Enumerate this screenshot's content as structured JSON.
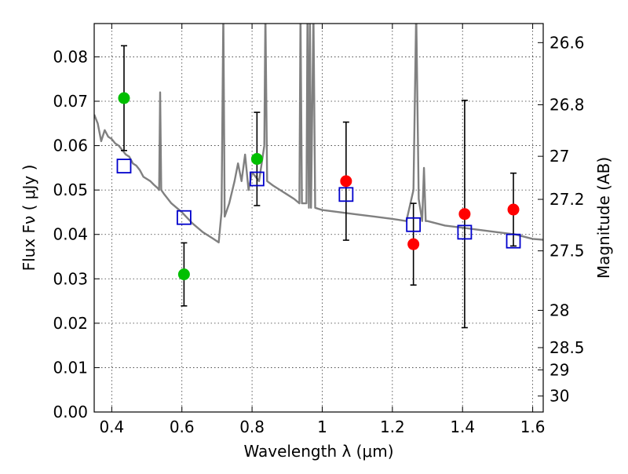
{
  "chart_data": {
    "type": "scatter",
    "xlabel": "Wavelength  λ (μm)",
    "ylabel": "Flux  Fν  ( μJy )",
    "y2label": "Magnitude (AB)",
    "xlim": [
      0.35,
      1.63
    ],
    "ylim": [
      0.0,
      0.0875
    ],
    "grid": true,
    "x_ticks": [
      0.4,
      0.6,
      0.8,
      1.0,
      1.2,
      1.4,
      1.6
    ],
    "x_tick_labels": [
      "0.4",
      "0.6",
      "0.8",
      "1",
      "1.2",
      "1.4",
      "1.6"
    ],
    "y_ticks": [
      0.0,
      0.01,
      0.02,
      0.03,
      0.04,
      0.05,
      0.06,
      0.07,
      0.08
    ],
    "y_tick_labels": [
      "0.00",
      "0.01",
      "0.02",
      "0.03",
      "0.04",
      "0.05",
      "0.06",
      "0.07",
      "0.08"
    ],
    "y2_ticks": [
      {
        "label": "26.6",
        "flux": 0.0832
      },
      {
        "label": "26.8",
        "flux": 0.0692
      },
      {
        "label": "27",
        "flux": 0.0576
      },
      {
        "label": "27.2",
        "flux": 0.0479
      },
      {
        "label": "27.5",
        "flux": 0.0363
      },
      {
        "label": "28",
        "flux": 0.0229
      },
      {
        "label": "28.5",
        "flux": 0.0145
      },
      {
        "label": "29",
        "flux": 0.0095
      },
      {
        "label": "30",
        "flux": 0.0036
      }
    ],
    "series": [
      {
        "marker": "circle",
        "color": "#00bf00",
        "points": [
          {
            "x": 0.435,
            "y": 0.0707,
            "err": 0.0118
          },
          {
            "x": 0.606,
            "y": 0.031,
            "err": 0.0071
          },
          {
            "x": 0.814,
            "y": 0.057,
            "err": 0.0105
          }
        ]
      },
      {
        "marker": "circle",
        "color": "#ff0000",
        "points": [
          {
            "x": 1.068,
            "y": 0.052,
            "err": 0.0133
          },
          {
            "x": 1.26,
            "y": 0.0378,
            "err": 0.0092
          },
          {
            "x": 1.406,
            "y": 0.0446,
            "err": 0.0256
          },
          {
            "x": 1.545,
            "y": 0.0456,
            "err": 0.0082
          }
        ]
      },
      {
        "marker": "open-square",
        "color": "#0000cc",
        "points": [
          {
            "x": 0.435,
            "y": 0.0554
          },
          {
            "x": 0.606,
            "y": 0.0438
          },
          {
            "x": 0.814,
            "y": 0.0525
          },
          {
            "x": 1.068,
            "y": 0.049
          },
          {
            "x": 1.26,
            "y": 0.0422
          },
          {
            "x": 1.406,
            "y": 0.0405
          },
          {
            "x": 1.545,
            "y": 0.0385
          }
        ]
      },
      {
        "type": "line",
        "color": "#808080",
        "points": [
          [
            0.35,
            0.067
          ],
          [
            0.36,
            0.065
          ],
          [
            0.37,
            0.061
          ],
          [
            0.38,
            0.0635
          ],
          [
            0.39,
            0.062
          ],
          [
            0.4,
            0.0615
          ],
          [
            0.41,
            0.0605
          ],
          [
            0.42,
            0.06
          ],
          [
            0.43,
            0.059
          ],
          [
            0.44,
            0.058
          ],
          [
            0.45,
            0.0575
          ],
          [
            0.46,
            0.056
          ],
          [
            0.47,
            0.0555
          ],
          [
            0.48,
            0.0545
          ],
          [
            0.49,
            0.053
          ],
          [
            0.5,
            0.0525
          ],
          [
            0.51,
            0.052
          ],
          [
            0.52,
            0.0512
          ],
          [
            0.53,
            0.0505
          ],
          [
            0.535,
            0.05
          ],
          [
            0.538,
            0.072
          ],
          [
            0.541,
            0.05
          ],
          [
            0.55,
            0.049
          ],
          [
            0.57,
            0.047
          ],
          [
            0.6,
            0.045
          ],
          [
            0.63,
            0.0425
          ],
          [
            0.66,
            0.0405
          ],
          [
            0.69,
            0.039
          ],
          [
            0.705,
            0.0382
          ],
          [
            0.713,
            0.045
          ],
          [
            0.718,
            0.09
          ],
          [
            0.722,
            0.044
          ],
          [
            0.735,
            0.047
          ],
          [
            0.75,
            0.052
          ],
          [
            0.76,
            0.056
          ],
          [
            0.77,
            0.052
          ],
          [
            0.78,
            0.058
          ],
          [
            0.79,
            0.05
          ],
          [
            0.8,
            0.054
          ],
          [
            0.82,
            0.052
          ],
          [
            0.835,
            0.06
          ],
          [
            0.838,
            0.09
          ],
          [
            0.843,
            0.052
          ],
          [
            0.86,
            0.051
          ],
          [
            0.88,
            0.05
          ],
          [
            0.9,
            0.049
          ],
          [
            0.92,
            0.048
          ],
          [
            0.935,
            0.047
          ],
          [
            0.938,
            0.09
          ],
          [
            0.942,
            0.047
          ],
          [
            0.955,
            0.047
          ],
          [
            0.958,
            0.09
          ],
          [
            0.962,
            0.046
          ],
          [
            0.965,
            0.09
          ],
          [
            0.968,
            0.046
          ],
          [
            0.975,
            0.09
          ],
          [
            0.98,
            0.046
          ],
          [
            1.0,
            0.0455
          ],
          [
            1.05,
            0.045
          ],
          [
            1.1,
            0.0445
          ],
          [
            1.15,
            0.044
          ],
          [
            1.2,
            0.0435
          ],
          [
            1.24,
            0.043
          ],
          [
            1.26,
            0.05
          ],
          [
            1.268,
            0.09
          ],
          [
            1.275,
            0.048
          ],
          [
            1.285,
            0.043
          ],
          [
            1.29,
            0.055
          ],
          [
            1.295,
            0.043
          ],
          [
            1.3,
            0.043
          ],
          [
            1.35,
            0.042
          ],
          [
            1.4,
            0.0415
          ],
          [
            1.45,
            0.041
          ],
          [
            1.5,
            0.0405
          ],
          [
            1.55,
            0.04
          ],
          [
            1.6,
            0.039
          ],
          [
            1.63,
            0.0388
          ]
        ]
      }
    ]
  }
}
